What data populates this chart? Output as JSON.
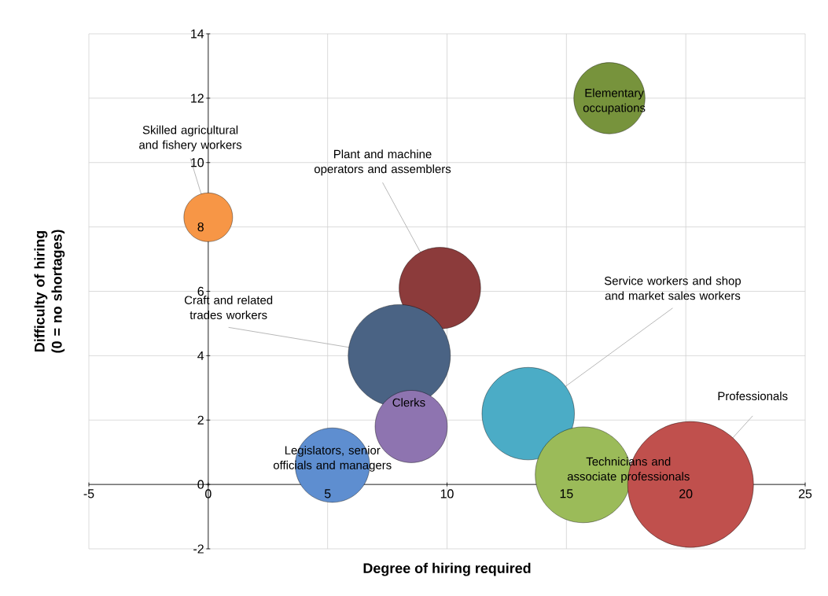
{
  "chart_data": {
    "type": "bubble",
    "xlabel": "Degree of hiring required",
    "ylabel": "Difficulty of hiring (0 = no shortages)",
    "xlim": [
      -5,
      25
    ],
    "ylim": [
      -2,
      14
    ],
    "xticks": [
      -5,
      0,
      5,
      10,
      15,
      20,
      25
    ],
    "yticks": [
      -2,
      0,
      2,
      4,
      6,
      8,
      10,
      12,
      14
    ],
    "grid": true,
    "series": [
      {
        "name": "Skilled agricultural and fishery workers",
        "color": "#f79646",
        "x": [
          0
        ],
        "values": [
          8.3
        ],
        "sizes": [
          0.15
        ]
      },
      {
        "name": "Elementary occupations",
        "color": "#77933c",
        "x": [
          16.8
        ],
        "values": [
          12
        ],
        "sizes": [
          0.32
        ]
      },
      {
        "name": "Plant and machine operators and assemblers",
        "color": "#8c3b3b",
        "x": [
          9.7
        ],
        "values": [
          6.1
        ],
        "sizes": [
          0.42
        ]
      },
      {
        "name": "Craft and related trades workers",
        "color": "#4a6384",
        "x": [
          8.0
        ],
        "values": [
          4.0
        ],
        "sizes": [
          0.66
        ]
      },
      {
        "name": "Clerks",
        "color": "#8e74b0",
        "x": [
          8.5
        ],
        "values": [
          1.8
        ],
        "sizes": [
          0.33
        ]
      },
      {
        "name": "Legislators, senior officials and managers",
        "color": "#5e8ed0",
        "x": [
          5.2
        ],
        "values": [
          0.6
        ],
        "sizes": [
          0.35
        ]
      },
      {
        "name": "Service workers and shop and market sales workers",
        "color": "#4bacc6",
        "x": [
          13.4
        ],
        "values": [
          2.2
        ],
        "sizes": [
          0.54
        ]
      },
      {
        "name": "Technicians and associate professionals",
        "color": "#9bbb59",
        "x": [
          15.7
        ],
        "values": [
          0.3
        ],
        "sizes": [
          0.58
        ]
      },
      {
        "name": "Professionals",
        "color": "#c0504d",
        "x": [
          20.2
        ],
        "values": [
          0.0
        ],
        "sizes": [
          1
        ]
      }
    ]
  }
}
